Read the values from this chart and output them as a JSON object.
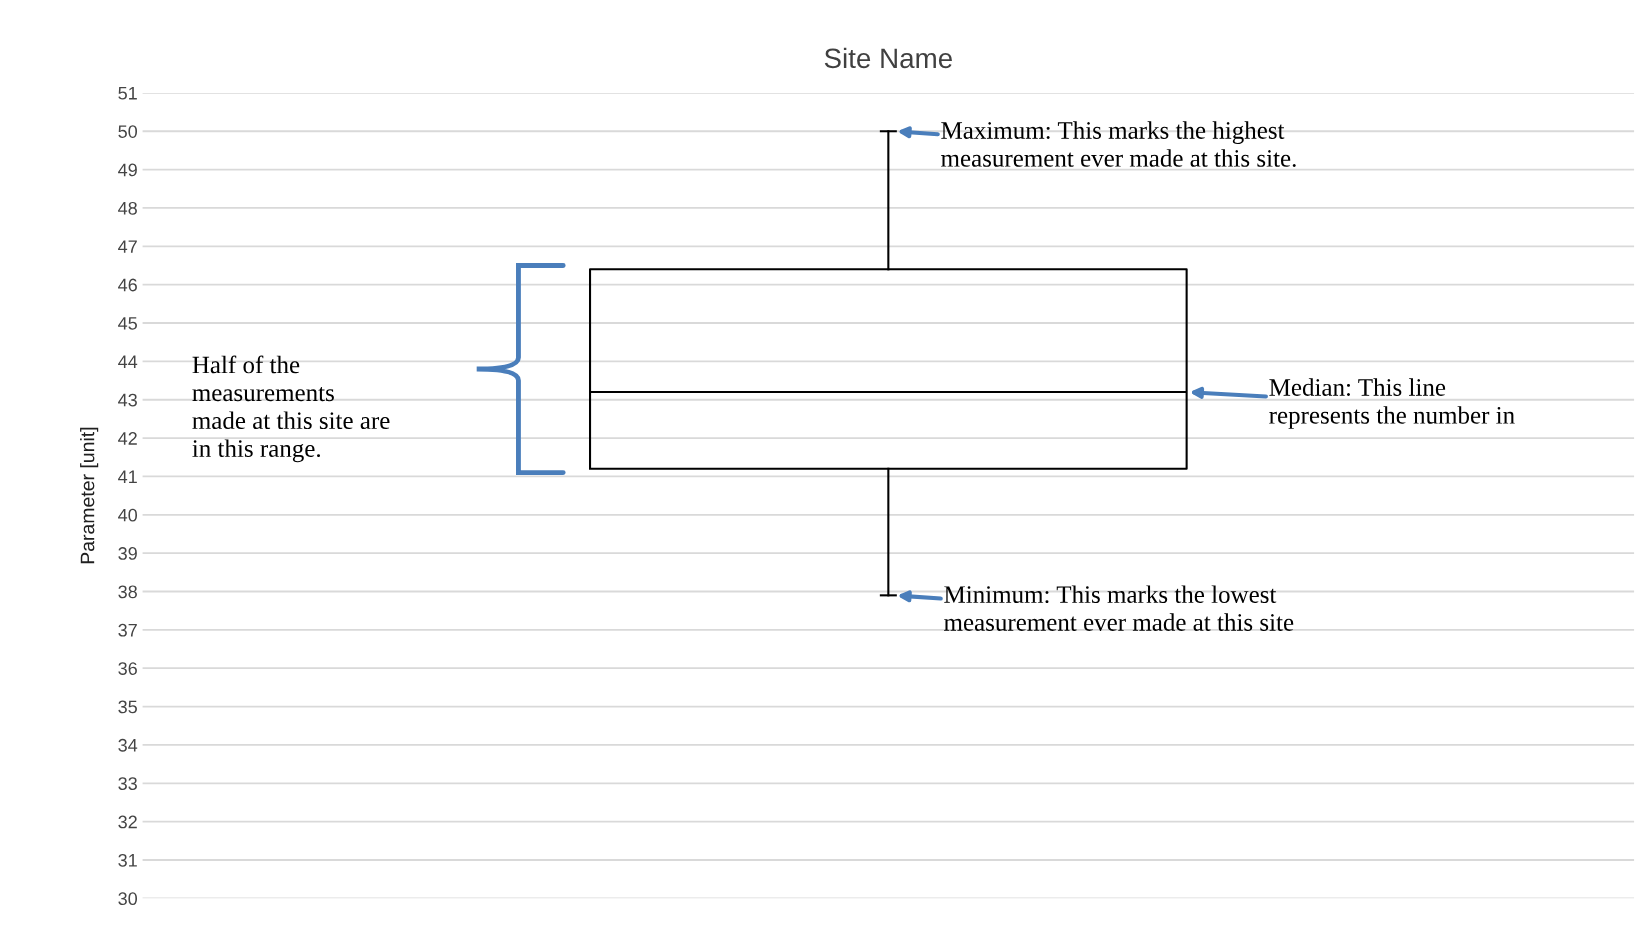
{
  "chart_data": {
    "type": "box",
    "title": "Site Name",
    "ylabel": "Parameter [unit]",
    "categories": [
      null
    ],
    "boxes": [
      {
        "low": 37.9,
        "q1": 41.2,
        "median": 43.2,
        "q3": 46.4,
        "high": 50
      }
    ],
    "ylim": [
      30,
      51
    ],
    "yticks": [
      30,
      31,
      32,
      33,
      34,
      35,
      36,
      37,
      38,
      39,
      40,
      41,
      42,
      43,
      44,
      45,
      46,
      47,
      48,
      49,
      50,
      51
    ],
    "grid": "y",
    "annotations": [
      "Maximum: This marks the highest\nmeasurement ever made at this site.",
      "Median: This line\nrepresents the number in",
      "Minimum: This marks the lowest\nmeasurement ever made at this site",
      "Half of the\nmeasurements\nmade at this site are\nin this range."
    ]
  }
}
